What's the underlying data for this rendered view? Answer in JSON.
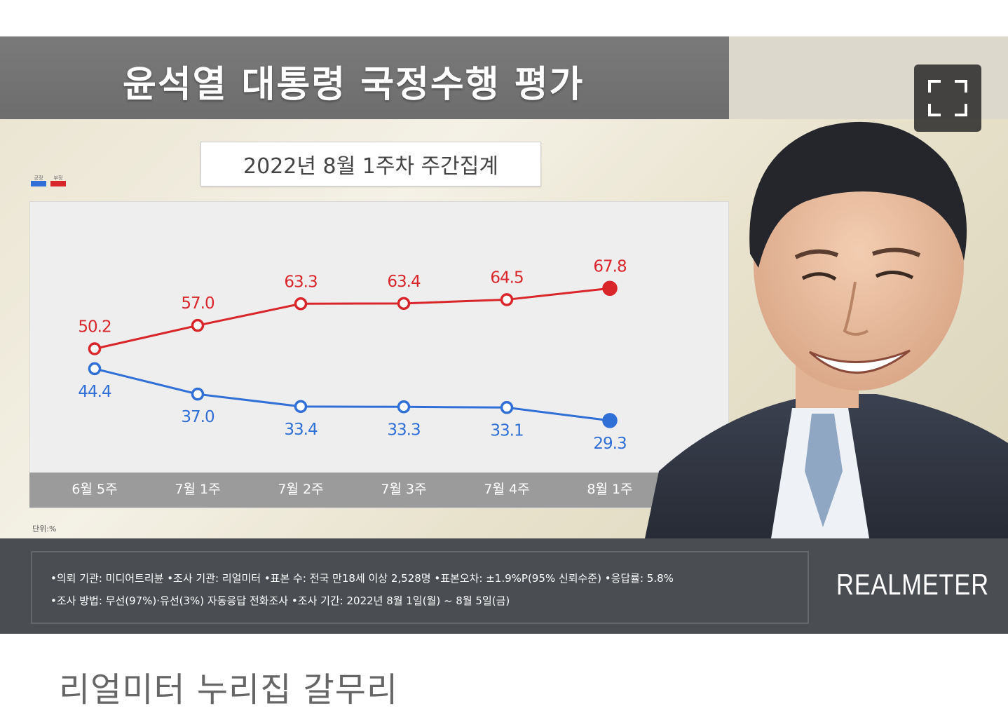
{
  "title": "윤석열 대통령 국정수행 평가",
  "subtitle": "2022년 8월 1주차 주간집계",
  "legend": [
    {
      "label": "긍정",
      "color": "#2f6fd6"
    },
    {
      "label": "부정",
      "color": "#d9262b"
    }
  ],
  "unit": "단위:%",
  "footer": {
    "line1": "•의뢰 기관: 미디어트리뷴 •조사 기관: 리얼미터 •표본 수: 전국 만18세 이상 2,528명 •표본오차: ±1.9%P(95% 신뢰수준) •응답률: 5.8%",
    "line2": "•조사 방법: 무선(97%)·유선(3%) 자동응답 전화조사 •조사 기간: 2022년 8월 1일(월) ~ 8월 5일(금)",
    "brand": "REALMETER"
  },
  "caption": "리얼미터 누리집 갈무리",
  "expand_icon": "fullscreen-icon",
  "chart_data": {
    "type": "line",
    "title": "윤석열 대통령 국정수행 평가",
    "subtitle": "2022년 8월 1주차 주간집계",
    "categories": [
      "6월 5주",
      "7월 1주",
      "7월 2주",
      "7월 3주",
      "7월 4주",
      "8월 1주"
    ],
    "series": [
      {
        "name": "부정",
        "color": "#d9262b",
        "values": [
          50.2,
          57.0,
          63.3,
          63.4,
          64.5,
          67.8
        ],
        "labels": [
          "50.2",
          "57.0",
          "63.3",
          "63.4",
          "64.5",
          "67.8"
        ]
      },
      {
        "name": "긍정",
        "color": "#2f6fd6",
        "values": [
          44.4,
          37.0,
          33.4,
          33.3,
          33.1,
          29.3
        ],
        "labels": [
          "44.4",
          "37.0",
          "33.4",
          "33.3",
          "33.1",
          "29.3"
        ]
      }
    ],
    "grid": false,
    "legend_position": "top-left"
  }
}
